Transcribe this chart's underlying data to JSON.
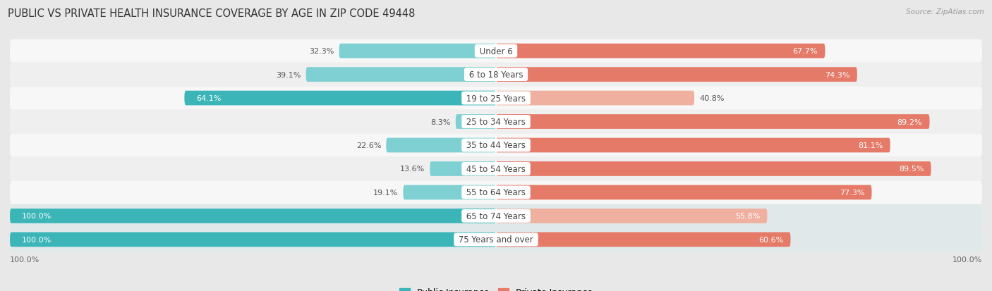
{
  "title": "PUBLIC VS PRIVATE HEALTH INSURANCE COVERAGE BY AGE IN ZIP CODE 49448",
  "source": "Source: ZipAtlas.com",
  "categories": [
    "Under 6",
    "6 to 18 Years",
    "19 to 25 Years",
    "25 to 34 Years",
    "35 to 44 Years",
    "45 to 54 Years",
    "55 to 64 Years",
    "65 to 74 Years",
    "75 Years and over"
  ],
  "public_values": [
    32.3,
    39.1,
    64.1,
    8.3,
    22.6,
    13.6,
    19.1,
    100.0,
    100.0
  ],
  "private_values": [
    67.7,
    74.3,
    40.8,
    89.2,
    81.1,
    89.5,
    77.3,
    55.8,
    60.6
  ],
  "public_color_strong": "#3bb5b8",
  "public_color_light": "#7fd0d2",
  "private_color_strong": "#e57a68",
  "private_color_light": "#f0b0a0",
  "row_colors": [
    "#f7f7f7",
    "#efefef",
    "#f7f7f7",
    "#efefef",
    "#f7f7f7",
    "#efefef",
    "#f7f7f7",
    "#e0e8ea",
    "#e0e8ea"
  ],
  "bg_color": "#e8e8e8",
  "title_fontsize": 10.5,
  "label_fontsize": 8.5,
  "value_fontsize": 8.0,
  "bar_height": 0.62,
  "legend_labels": [
    "Public Insurance",
    "Private Insurance"
  ],
  "xlim_left": -100,
  "xlim_right": 100
}
